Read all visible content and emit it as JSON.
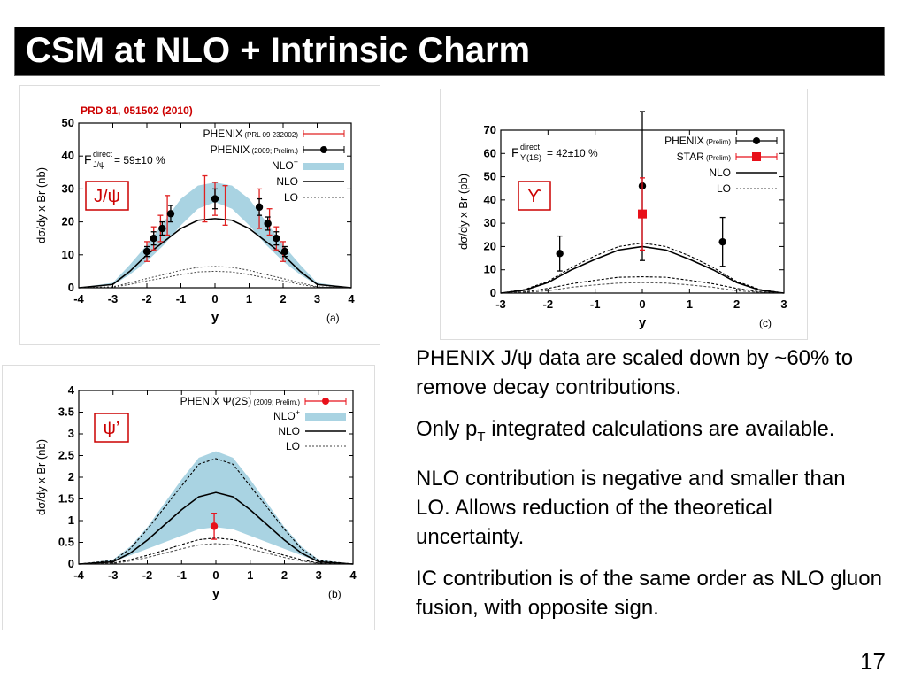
{
  "slide": {
    "title": "CSM at NLO + Intrinsic Charm",
    "page_number": "17",
    "bullets": {
      "b1": "PHENIX J/ψ data are scaled down by ~60% to remove decay contributions.",
      "b2_pre": "Only p",
      "b2_sub": "T",
      "b2_post": " integrated calculations are available.",
      "b3": "NLO contribution is negative and smaller than LO. Allows reduction of the theoretical uncertainty.",
      "b4": "IC contribution is of the same order as NLO gluon fusion, with opposite sign."
    }
  },
  "colors": {
    "band": "#a9d3e2",
    "phenix_prl": "#e02020",
    "phenix_prelim": "#000000",
    "star": "#e8101a",
    "psi2s": "#e8101a",
    "label_box": "#cc0000"
  },
  "chart_data": [
    {
      "id": "a",
      "type": "line",
      "reference": "PRD 81, 051502 (2010)",
      "panel_tag": "(a)",
      "state_label": "J/ψ",
      "fraction_text": {
        "F": "F",
        "sup": "direct",
        "sub": "J/ψ",
        "value": "= 59±10 %"
      },
      "xlabel": "y",
      "ylabel": "dσ/dy x Br (nb)",
      "xlim": [
        -4,
        4
      ],
      "ylim": [
        0,
        50
      ],
      "xticks": [
        "-4",
        "-3",
        "-2",
        "-1",
        "0",
        "1",
        "2",
        "3",
        "4"
      ],
      "yticks": [
        "0",
        "10",
        "20",
        "30",
        "40",
        "50"
      ],
      "legend": [
        {
          "main": "PHENIX",
          "note": "(PRL 09 232002)"
        },
        {
          "main": "PHENIX",
          "note": "(2009; Prelim.)"
        },
        {
          "main": "NLO",
          "sup": "+"
        },
        {
          "main": "NLO"
        },
        {
          "main": "LO"
        }
      ],
      "x": [
        -4,
        -3,
        -2.5,
        -2,
        -1.5,
        -1,
        -0.5,
        0,
        0.5,
        1,
        1.5,
        2,
        2.5,
        3,
        4
      ],
      "series": [
        {
          "name": "NLO+",
          "lower": [
            0,
            0.8,
            4,
            8,
            13,
            19,
            24,
            26,
            24,
            19,
            13,
            8,
            4,
            0.8,
            0
          ],
          "upper": [
            0,
            1.5,
            7,
            13,
            20,
            27,
            31,
            32,
            31,
            27,
            20,
            13,
            7,
            1.5,
            0
          ]
        },
        {
          "name": "NLO",
          "values": [
            0,
            1,
            5,
            10,
            14,
            18,
            20.5,
            21,
            20.5,
            18,
            14,
            10,
            5,
            1,
            0
          ]
        },
        {
          "name": "LO",
          "upper": [
            0,
            0.3,
            1.5,
            2.8,
            4,
            5.3,
            6.2,
            6.5,
            6.2,
            5.3,
            4,
            2.8,
            1.5,
            0.3,
            0
          ],
          "lower": [
            0,
            0.2,
            1,
            2.1,
            3,
            4,
            4.8,
            5,
            4.8,
            4,
            3,
            2.1,
            1,
            0.2,
            0
          ]
        },
        {
          "name": "PHENIX (PRL 09 232002)",
          "points": [
            {
              "x": -2.0,
              "y": 11,
              "err": 3
            },
            {
              "x": -1.8,
              "y": 15,
              "err": 3.5
            },
            {
              "x": -1.6,
              "y": 18,
              "err": 4
            },
            {
              "x": -1.4,
              "y": 22,
              "err": 6
            },
            {
              "x": -0.3,
              "y": 27,
              "err": 7
            },
            {
              "x": 0.0,
              "y": 27,
              "err": 5
            },
            {
              "x": 0.3,
              "y": 25,
              "err": 6
            },
            {
              "x": 1.3,
              "y": 24,
              "err": 6
            },
            {
              "x": 1.6,
              "y": 20,
              "err": 4
            },
            {
              "x": 1.8,
              "y": 15,
              "err": 3.5
            },
            {
              "x": 2.0,
              "y": 11,
              "err": 3
            }
          ]
        },
        {
          "name": "PHENIX (2009; Prelim.)",
          "points": [
            {
              "x": -2.0,
              "y": 11,
              "err": 1.5
            },
            {
              "x": -1.8,
              "y": 15,
              "err": 2
            },
            {
              "x": -1.55,
              "y": 18,
              "err": 2
            },
            {
              "x": -1.3,
              "y": 22.5,
              "err": 2.5
            },
            {
              "x": 0.0,
              "y": 27,
              "err": 3
            },
            {
              "x": 1.3,
              "y": 24.5,
              "err": 2.5
            },
            {
              "x": 1.55,
              "y": 19.5,
              "err": 2
            },
            {
              "x": 1.8,
              "y": 15,
              "err": 2
            },
            {
              "x": 2.05,
              "y": 11,
              "err": 1.5
            }
          ]
        }
      ]
    },
    {
      "id": "c",
      "type": "line",
      "panel_tag": "(c)",
      "state_label": "ϒ",
      "fraction_text": {
        "F": "F",
        "sup": "direct",
        "sub": "ϒ(1S)",
        "value": "= 42±10 %"
      },
      "xlabel": "y",
      "ylabel": "dσ/dy x Br (pb)",
      "xlim": [
        -3,
        3
      ],
      "ylim": [
        0,
        70
      ],
      "xticks": [
        "-3",
        "-2",
        "-1",
        "0",
        "1",
        "2",
        "3"
      ],
      "yticks": [
        "0",
        "10",
        "20",
        "30",
        "40",
        "50",
        "60",
        "70"
      ],
      "legend": [
        {
          "main": "PHENIX",
          "note": "(Prelim)"
        },
        {
          "main": "STAR",
          "note": "(Prelim)"
        },
        {
          "main": "NLO"
        },
        {
          "main": "LO"
        }
      ],
      "x": [
        -3,
        -2.5,
        -2,
        -1.5,
        -1,
        -0.5,
        0,
        0.5,
        1,
        1.5,
        2,
        2.5,
        3
      ],
      "series": [
        {
          "name": "NLO upper",
          "values": [
            0,
            1.5,
            5,
            11,
            16,
            20,
            21.5,
            20,
            16,
            11,
            5,
            1.5,
            0
          ]
        },
        {
          "name": "NLO central",
          "values": [
            0,
            1.2,
            4.5,
            10,
            14.5,
            18.5,
            20,
            18.5,
            14.5,
            10,
            4.5,
            1.2,
            0
          ]
        },
        {
          "name": "LO upper",
          "values": [
            0,
            0.5,
            2,
            4,
            5.5,
            6.8,
            7,
            6.8,
            5.5,
            4,
            2,
            0.5,
            0
          ]
        },
        {
          "name": "LO lower",
          "values": [
            0,
            0.3,
            1,
            2.5,
            3.5,
            4.3,
            4.5,
            4.3,
            3.5,
            2.5,
            1,
            0.3,
            0
          ]
        },
        {
          "name": "PHENIX (Prelim)",
          "points": [
            {
              "x": -1.75,
              "y": 17,
              "err": 7.5
            },
            {
              "x": 0.0,
              "y": 46,
              "err": 32
            },
            {
              "x": 1.7,
              "y": 22,
              "err": 10.5
            }
          ]
        },
        {
          "name": "STAR (Prelim)",
          "points": [
            {
              "x": 0.0,
              "y": 34,
              "err": 15.5
            }
          ]
        }
      ]
    },
    {
      "id": "b",
      "type": "line",
      "panel_tag": "(b)",
      "state_label": "ψ’",
      "xlabel": "y",
      "ylabel": "dσ/dy x Br (nb)",
      "xlim": [
        -4,
        4
      ],
      "ylim": [
        0,
        4
      ],
      "xticks": [
        "-4",
        "-3",
        "-2",
        "-1",
        "0",
        "1",
        "2",
        "3",
        "4"
      ],
      "yticks": [
        "0",
        "0.5",
        "1",
        "1.5",
        "2",
        "2.5",
        "3",
        "3.5",
        "4"
      ],
      "legend": [
        {
          "main": "PHENIX Ψ(2S)",
          "note": "(2009; Prelim.)"
        },
        {
          "main": "NLO",
          "sup": "+"
        },
        {
          "main": "NLO"
        },
        {
          "main": "LO"
        }
      ],
      "x": [
        -4,
        -3,
        -2.5,
        -2,
        -1.5,
        -1,
        -0.5,
        0,
        0.5,
        1,
        1.5,
        2,
        2.5,
        3,
        4
      ],
      "series": [
        {
          "name": "NLO+",
          "lower": [
            0,
            0.05,
            0.2,
            0.35,
            0.5,
            0.65,
            0.8,
            0.85,
            0.8,
            0.65,
            0.5,
            0.35,
            0.2,
            0.05,
            0
          ],
          "upper": [
            0,
            0.1,
            0.4,
            0.85,
            1.4,
            1.95,
            2.45,
            2.6,
            2.45,
            1.95,
            1.4,
            0.85,
            0.4,
            0.1,
            0
          ]
        },
        {
          "name": "NLO upper",
          "values": [
            0,
            0.08,
            0.35,
            0.8,
            1.3,
            1.8,
            2.3,
            2.43,
            2.3,
            1.8,
            1.3,
            0.8,
            0.35,
            0.08,
            0
          ]
        },
        {
          "name": "NLO central",
          "values": [
            0,
            0.05,
            0.25,
            0.55,
            0.9,
            1.25,
            1.55,
            1.65,
            1.55,
            1.25,
            0.9,
            0.55,
            0.25,
            0.05,
            0
          ]
        },
        {
          "name": "LO upper",
          "values": [
            0,
            0.02,
            0.1,
            0.2,
            0.32,
            0.45,
            0.56,
            0.6,
            0.56,
            0.45,
            0.32,
            0.2,
            0.1,
            0.02,
            0
          ]
        },
        {
          "name": "LO lower",
          "values": [
            0,
            0.01,
            0.07,
            0.15,
            0.25,
            0.35,
            0.44,
            0.47,
            0.44,
            0.35,
            0.25,
            0.15,
            0.07,
            0.01,
            0
          ]
        },
        {
          "name": "PHENIX Ψ(2S) (2009; Prelim.)",
          "points": [
            {
              "x": -0.05,
              "y": 0.87,
              "err": 0.3
            }
          ]
        }
      ]
    }
  ]
}
